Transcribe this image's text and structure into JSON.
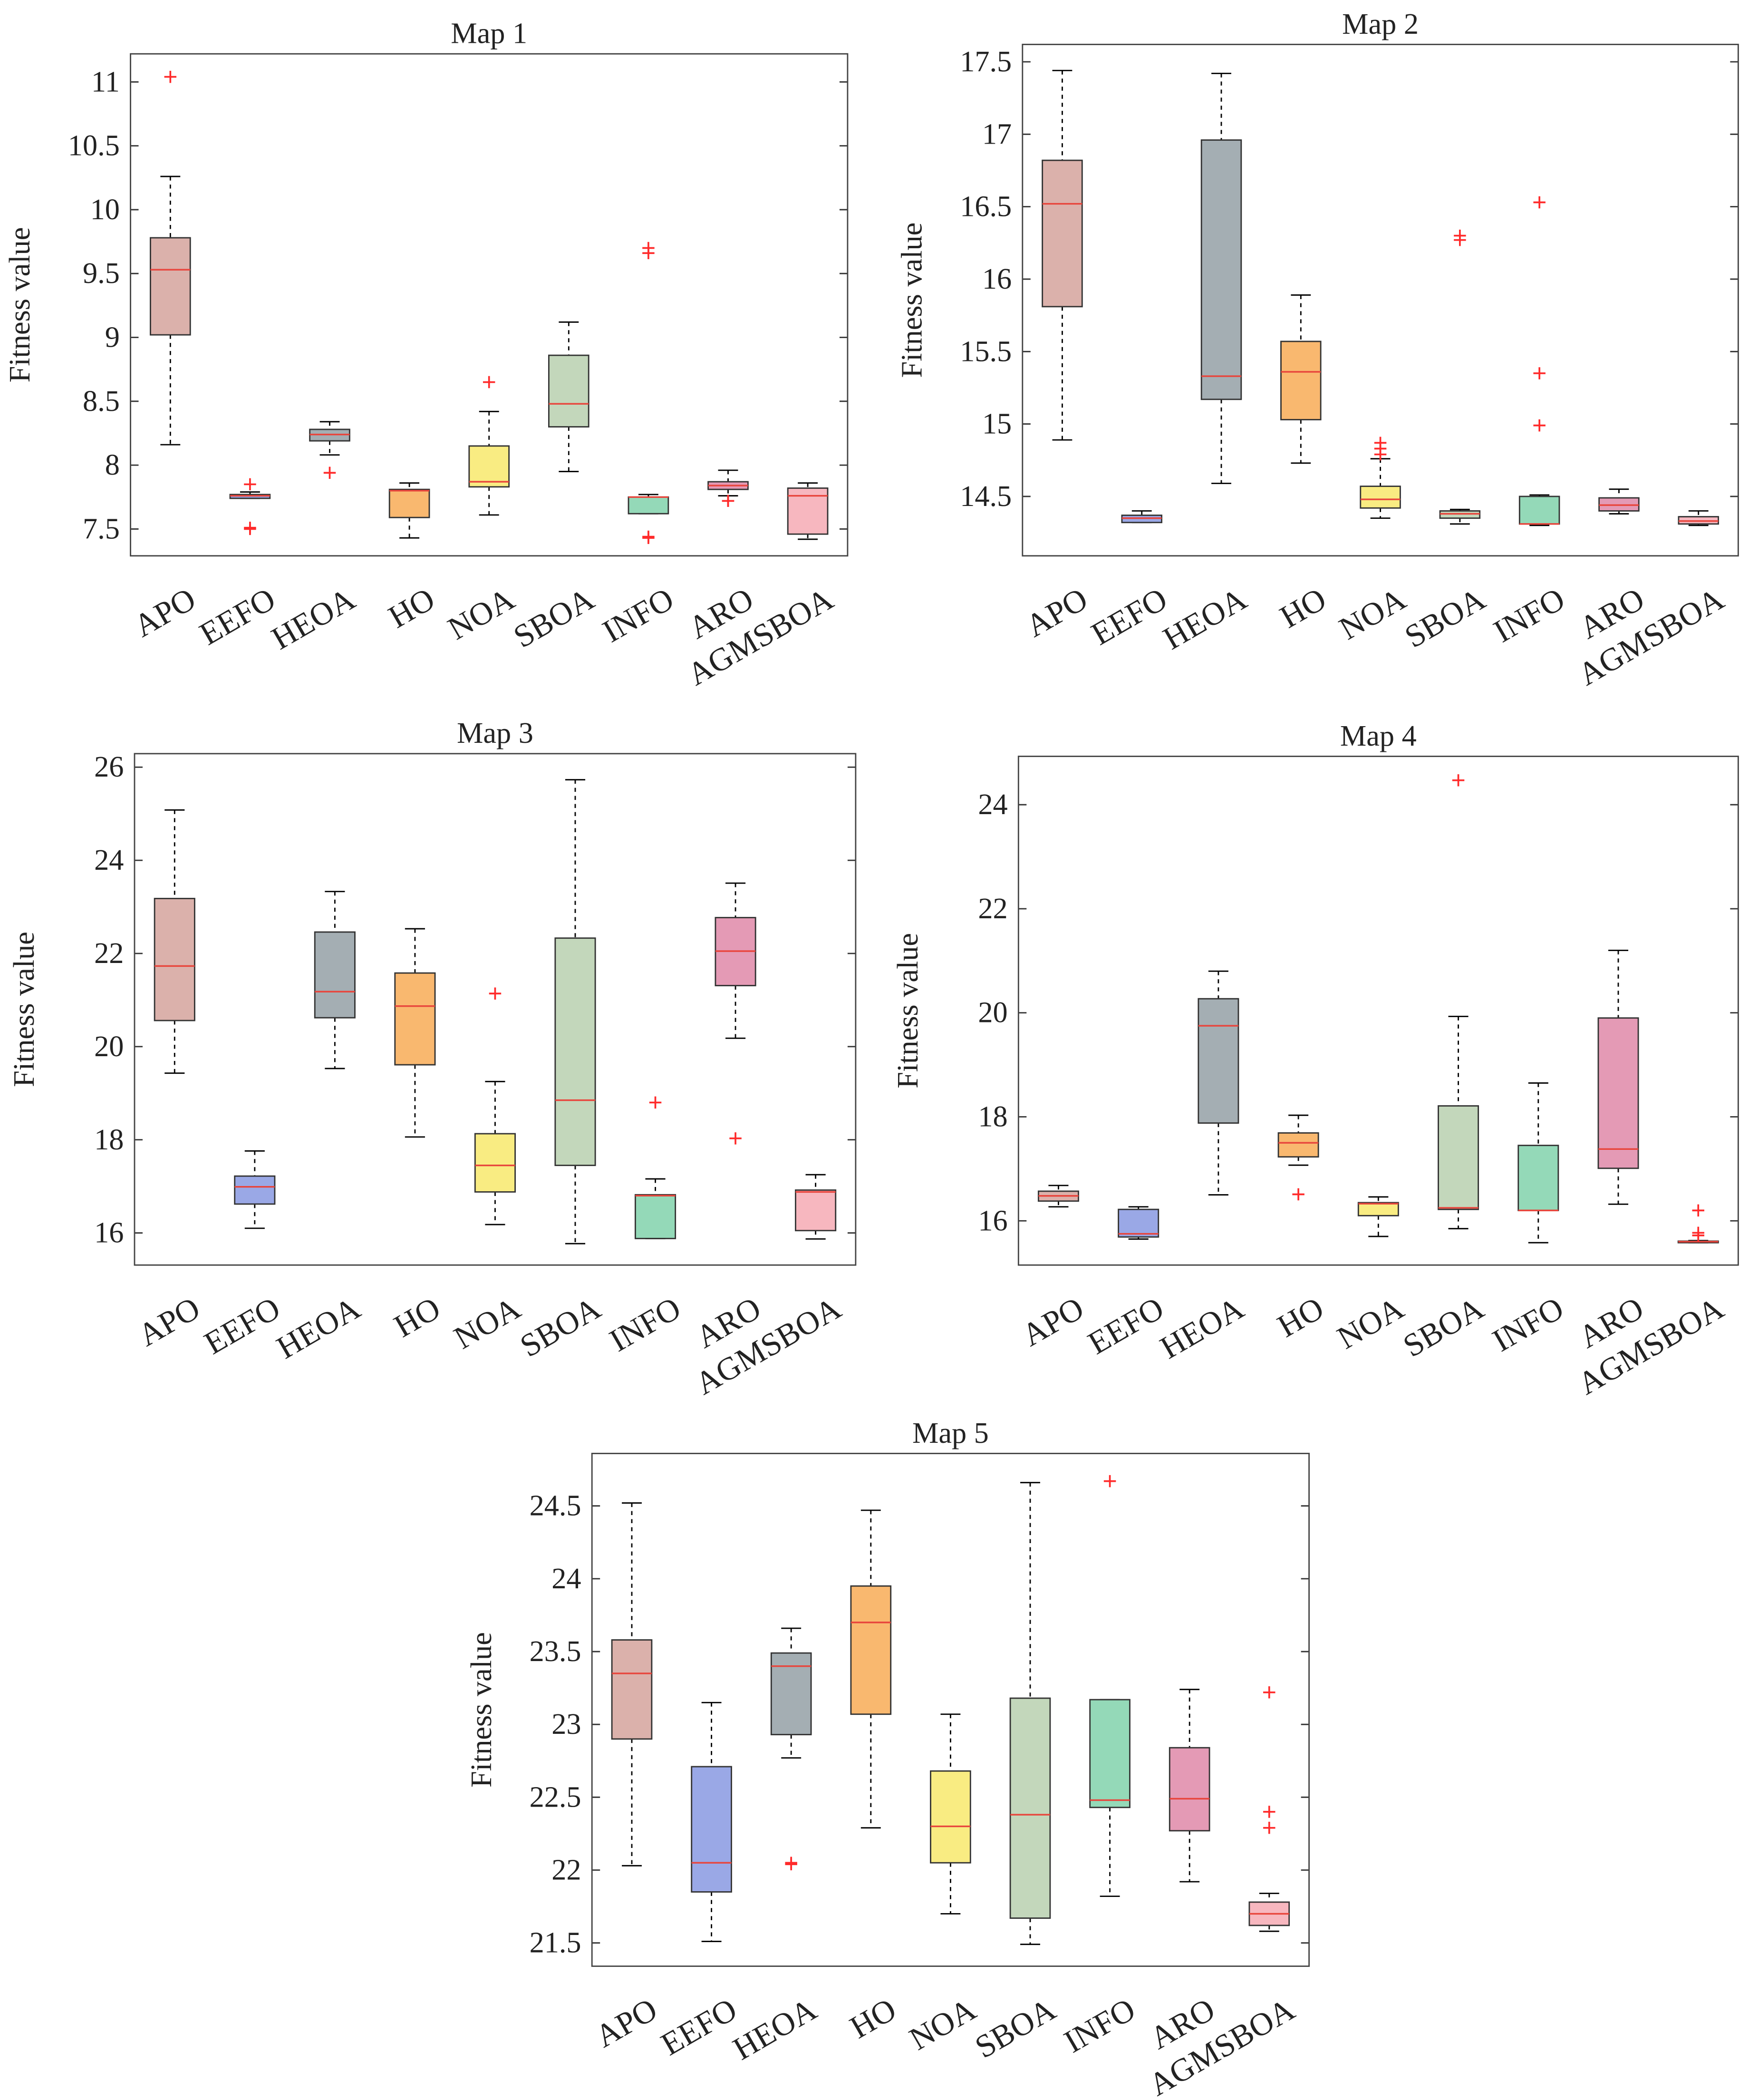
{
  "chart_data": [
    {
      "type": "box",
      "title": "Map 1",
      "ylabel": "Fitness value",
      "categories": [
        "APO",
        "EEFO",
        "HEOA",
        "HO",
        "NOA",
        "SBOA",
        "INFO",
        "ARO",
        "AGMSBOA"
      ],
      "colors": [
        "#dbb1ab",
        "#9aa8e6",
        "#a4aeb3",
        "#f9b86f",
        "#f9ec82",
        "#c3d7bb",
        "#94d9b8",
        "#e49ab5",
        "#f7b7bf"
      ],
      "median_color": "#e8453c",
      "outlier_color": "#ff2a2a",
      "ylim": [
        7.29,
        11.22
      ],
      "yticks": [
        7.5,
        8,
        8.5,
        9,
        9.5,
        10,
        10.5,
        11
      ],
      "boxes": [
        {
          "min": 8.16,
          "q1": 9.02,
          "median": 9.53,
          "q3": 9.78,
          "max": 10.26,
          "outliers": [
            11.04
          ]
        },
        {
          "min": 7.74,
          "q1": 7.74,
          "median": 7.76,
          "q3": 7.77,
          "max": 7.79,
          "outliers": [
            7.85,
            7.51,
            7.5
          ]
        },
        {
          "min": 8.08,
          "q1": 8.19,
          "median": 8.24,
          "q3": 8.28,
          "max": 8.34,
          "outliers": [
            7.94
          ]
        },
        {
          "min": 7.43,
          "q1": 7.59,
          "median": 7.8,
          "q3": 7.81,
          "max": 7.86,
          "outliers": []
        },
        {
          "min": 7.61,
          "q1": 7.83,
          "median": 7.87,
          "q3": 8.15,
          "max": 8.42,
          "outliers": [
            8.65
          ]
        },
        {
          "min": 7.95,
          "q1": 8.3,
          "median": 8.48,
          "q3": 8.86,
          "max": 9.12,
          "outliers": []
        },
        {
          "min": 7.62,
          "q1": 7.62,
          "median": 7.75,
          "q3": 7.75,
          "max": 7.77,
          "outliers": [
            9.7,
            9.66,
            7.44,
            7.43
          ]
        },
        {
          "min": 7.76,
          "q1": 7.81,
          "median": 7.84,
          "q3": 7.87,
          "max": 7.96,
          "outliers": [
            7.72,
            7.72
          ]
        },
        {
          "min": 7.42,
          "q1": 7.46,
          "median": 7.76,
          "q3": 7.82,
          "max": 7.86,
          "outliers": []
        }
      ]
    },
    {
      "type": "box",
      "title": "Map 2",
      "ylabel": "Fitness value",
      "categories": [
        "APO",
        "EEFO",
        "HEOA",
        "HO",
        "NOA",
        "SBOA",
        "INFO",
        "ARO",
        "AGMSBOA"
      ],
      "colors": [
        "#dbb1ab",
        "#9aa8e6",
        "#a4aeb3",
        "#f9b86f",
        "#f9ec82",
        "#c3d7bb",
        "#94d9b8",
        "#e49ab5",
        "#f7b7bf"
      ],
      "median_color": "#e8453c",
      "outlier_color": "#ff2a2a",
      "ylim": [
        14.09,
        17.62
      ],
      "yticks": [
        14.5,
        15,
        15.5,
        16,
        16.5,
        17,
        17.5
      ],
      "boxes": [
        {
          "min": 14.89,
          "q1": 15.81,
          "median": 16.52,
          "q3": 16.82,
          "max": 17.44,
          "outliers": []
        },
        {
          "min": 14.32,
          "q1": 14.32,
          "median": 14.35,
          "q3": 14.37,
          "max": 14.4,
          "outliers": []
        },
        {
          "min": 14.59,
          "q1": 15.17,
          "median": 15.33,
          "q3": 16.96,
          "max": 17.42,
          "outliers": []
        },
        {
          "min": 14.73,
          "q1": 15.03,
          "median": 15.36,
          "q3": 15.57,
          "max": 15.89,
          "outliers": []
        },
        {
          "min": 14.35,
          "q1": 14.42,
          "median": 14.48,
          "q3": 14.57,
          "max": 14.76,
          "outliers": [
            14.87,
            14.83,
            14.79
          ]
        },
        {
          "min": 14.31,
          "q1": 14.35,
          "median": 14.38,
          "q3": 14.4,
          "max": 14.41,
          "outliers": [
            16.3,
            16.27
          ]
        },
        {
          "min": 14.3,
          "q1": 14.31,
          "median": 14.31,
          "q3": 14.5,
          "max": 14.51,
          "outliers": [
            16.53,
            15.35,
            14.99
          ]
        },
        {
          "min": 14.38,
          "q1": 14.4,
          "median": 14.44,
          "q3": 14.49,
          "max": 14.55,
          "outliers": []
        },
        {
          "min": 14.3,
          "q1": 14.31,
          "median": 14.33,
          "q3": 14.36,
          "max": 14.4,
          "outliers": []
        }
      ]
    },
    {
      "type": "box",
      "title": "Map 3",
      "ylabel": "Fitness value",
      "categories": [
        "APO",
        "EEFO",
        "HEOA",
        "HO",
        "NOA",
        "SBOA",
        "INFO",
        "ARO",
        "AGMSBOA"
      ],
      "colors": [
        "#dbb1ab",
        "#9aa8e6",
        "#a4aeb3",
        "#f9b86f",
        "#f9ec82",
        "#c3d7bb",
        "#94d9b8",
        "#e49ab5",
        "#f7b7bf"
      ],
      "median_color": "#e8453c",
      "outlier_color": "#ff2a2a",
      "ylim": [
        15.31,
        26.29
      ],
      "yticks": [
        16,
        18,
        20,
        22,
        24,
        26
      ],
      "boxes": [
        {
          "min": 19.43,
          "q1": 20.56,
          "median": 21.73,
          "q3": 23.18,
          "max": 25.08,
          "outliers": []
        },
        {
          "min": 16.1,
          "q1": 16.62,
          "median": 16.99,
          "q3": 17.22,
          "max": 17.76,
          "outliers": []
        },
        {
          "min": 19.53,
          "q1": 20.62,
          "median": 21.18,
          "q3": 22.46,
          "max": 23.33,
          "outliers": []
        },
        {
          "min": 18.06,
          "q1": 19.61,
          "median": 20.87,
          "q3": 21.58,
          "max": 22.53,
          "outliers": []
        },
        {
          "min": 16.18,
          "q1": 16.88,
          "median": 17.45,
          "q3": 18.13,
          "max": 19.25,
          "outliers": [
            21.14
          ]
        },
        {
          "min": 15.77,
          "q1": 17.45,
          "median": 18.85,
          "q3": 22.33,
          "max": 25.73,
          "outliers": []
        },
        {
          "min": 15.88,
          "q1": 15.88,
          "median": 16.8,
          "q3": 16.82,
          "max": 17.16,
          "outliers": [
            18.8
          ]
        },
        {
          "min": 20.18,
          "q1": 21.31,
          "median": 22.05,
          "q3": 22.77,
          "max": 23.51,
          "outliers": [
            18.03
          ]
        },
        {
          "min": 15.87,
          "q1": 16.05,
          "median": 16.88,
          "q3": 16.92,
          "max": 17.25,
          "outliers": []
        }
      ]
    },
    {
      "type": "box",
      "title": "Map 4",
      "ylabel": "Fitness value",
      "categories": [
        "APO",
        "EEFO",
        "HEOA",
        "HO",
        "NOA",
        "SBOA",
        "INFO",
        "ARO",
        "AGMSBOA"
      ],
      "colors": [
        "#dbb1ab",
        "#9aa8e6",
        "#a4aeb3",
        "#f9b86f",
        "#f9ec82",
        "#c3d7bb",
        "#94d9b8",
        "#e49ab5",
        "#f7b7bf"
      ],
      "median_color": "#e8453c",
      "outlier_color": "#ff2a2a",
      "ylim": [
        15.15,
        24.93
      ],
      "yticks": [
        16,
        18,
        20,
        22,
        24
      ],
      "boxes": [
        {
          "min": 16.27,
          "q1": 16.38,
          "median": 16.48,
          "q3": 16.57,
          "max": 16.68,
          "outliers": []
        },
        {
          "min": 15.65,
          "q1": 15.69,
          "median": 15.75,
          "q3": 16.22,
          "max": 16.27,
          "outliers": []
        },
        {
          "min": 16.5,
          "q1": 17.88,
          "median": 19.75,
          "q3": 20.27,
          "max": 20.8,
          "outliers": []
        },
        {
          "min": 17.07,
          "q1": 17.23,
          "median": 17.5,
          "q3": 17.69,
          "max": 18.03,
          "outliers": [
            16.51
          ]
        },
        {
          "min": 15.7,
          "q1": 16.1,
          "median": 16.33,
          "q3": 16.35,
          "max": 16.46,
          "outliers": []
        },
        {
          "min": 15.85,
          "q1": 16.22,
          "median": 16.25,
          "q3": 18.21,
          "max": 19.93,
          "outliers": [
            24.47
          ]
        },
        {
          "min": 15.58,
          "q1": 16.2,
          "median": 16.2,
          "q3": 17.45,
          "max": 18.65,
          "outliers": []
        },
        {
          "min": 16.32,
          "q1": 17.01,
          "median": 17.38,
          "q3": 19.9,
          "max": 21.2,
          "outliers": []
        },
        {
          "min": 15.58,
          "q1": 15.58,
          "median": 15.6,
          "q3": 15.61,
          "max": 15.62,
          "outliers": [
            16.2,
            15.77,
            15.72
          ]
        }
      ]
    },
    {
      "type": "box",
      "title": "Map 5",
      "ylabel": "Fitness value",
      "categories": [
        "APO",
        "EEFO",
        "HEOA",
        "HO",
        "NOA",
        "SBOA",
        "INFO",
        "ARO",
        "AGMSBOA"
      ],
      "colors": [
        "#dbb1ab",
        "#9aa8e6",
        "#a4aeb3",
        "#f9b86f",
        "#f9ec82",
        "#c3d7bb",
        "#94d9b8",
        "#e49ab5",
        "#f7b7bf"
      ],
      "median_color": "#e8453c",
      "outlier_color": "#ff2a2a",
      "ylim": [
        21.34,
        24.86
      ],
      "yticks": [
        21.5,
        22,
        22.5,
        23,
        23.5,
        24,
        24.5
      ],
      "boxes": [
        {
          "min": 22.03,
          "q1": 22.9,
          "median": 23.35,
          "q3": 23.58,
          "max": 24.52,
          "outliers": []
        },
        {
          "min": 21.51,
          "q1": 21.85,
          "median": 22.05,
          "q3": 22.71,
          "max": 23.15,
          "outliers": []
        },
        {
          "min": 22.77,
          "q1": 22.93,
          "median": 23.4,
          "q3": 23.49,
          "max": 23.66,
          "outliers": [
            22.05,
            22.04
          ]
        },
        {
          "min": 22.29,
          "q1": 23.07,
          "median": 23.7,
          "q3": 23.95,
          "max": 24.47,
          "outliers": []
        },
        {
          "min": 21.7,
          "q1": 22.05,
          "median": 22.3,
          "q3": 22.68,
          "max": 23.07,
          "outliers": []
        },
        {
          "min": 21.49,
          "q1": 21.67,
          "median": 22.38,
          "q3": 23.18,
          "max": 24.66,
          "outliers": []
        },
        {
          "min": 21.82,
          "q1": 22.43,
          "median": 22.48,
          "q3": 23.17,
          "max": 23.17,
          "outliers": [
            24.67
          ]
        },
        {
          "min": 21.92,
          "q1": 22.27,
          "median": 22.49,
          "q3": 22.84,
          "max": 23.24,
          "outliers": []
        },
        {
          "min": 21.58,
          "q1": 21.62,
          "median": 21.7,
          "q3": 21.78,
          "max": 21.84,
          "outliers": [
            23.22,
            22.4,
            22.29
          ]
        }
      ]
    }
  ]
}
